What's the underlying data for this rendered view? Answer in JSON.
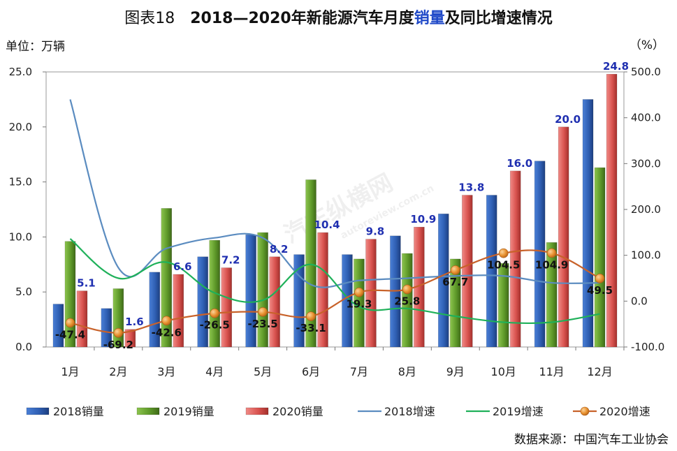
{
  "header": {
    "prefix": "图表18",
    "title_main": "2018—2020年新能源汽车月度",
    "title_accent": "销量",
    "title_suffix": "及同比增速情况"
  },
  "unit_left": "单位：万辆",
  "unit_right": "（%）",
  "source": "数据来源：中国汽车工业协会",
  "watermark": "汽车纵横网",
  "watermark_sub": "autoreview.com.cn",
  "colors": {
    "bar_2018": "#2f5fb3",
    "bar_2019": "#5f9a2a",
    "bar_2020": "#d9534f",
    "line_2018": "#5b8cc0",
    "line_2019": "#1fb15a",
    "line_2020": "#c8622a",
    "marker_2020": "#e8912f"
  },
  "chart_data": {
    "type": "bar",
    "categories": [
      "1月",
      "2月",
      "3月",
      "4月",
      "5月",
      "6月",
      "7月",
      "8月",
      "9月",
      "10月",
      "11月",
      "12月"
    ],
    "y_left": {
      "min": 0,
      "max": 25,
      "step": 5,
      "ticks": [
        "0.0",
        "5.0",
        "10.0",
        "15.0",
        "20.0",
        "25.0"
      ]
    },
    "y_right": {
      "min": -100,
      "max": 500,
      "step": 100,
      "ticks": [
        "-100.0",
        "0.0",
        "100.0",
        "200.0",
        "300.0",
        "400.0",
        "500.0"
      ]
    },
    "bar_series": [
      {
        "name": "2018销量",
        "values": [
          3.9,
          3.5,
          6.8,
          8.2,
          10.2,
          8.4,
          8.4,
          10.1,
          12.1,
          13.8,
          16.9,
          22.5
        ]
      },
      {
        "name": "2019销量",
        "values": [
          9.6,
          5.3,
          12.6,
          9.7,
          10.4,
          15.2,
          8.0,
          8.5,
          8.0,
          7.6,
          9.5,
          16.3
        ]
      },
      {
        "name": "2020销量",
        "values": [
          5.1,
          1.6,
          6.6,
          7.2,
          8.2,
          10.4,
          9.8,
          10.9,
          13.8,
          16.0,
          20.0,
          24.8
        ],
        "labels": [
          "5.1",
          "1.6",
          "6.6",
          "7.2",
          "8.2",
          "10.4",
          "9.8",
          "10.9",
          "13.8",
          "16.0",
          "20.0",
          "24.8"
        ]
      }
    ],
    "line_series": [
      {
        "name": "2018增速",
        "values": [
          440,
          73,
          115,
          138,
          138,
          36,
          45,
          50,
          55,
          55,
          40,
          40
        ]
      },
      {
        "name": "2019增速",
        "values": [
          136,
          50,
          85,
          18,
          2,
          80,
          -12,
          -16,
          -33,
          -46,
          -46,
          -28
        ]
      },
      {
        "name": "2020增速",
        "values": [
          -47.4,
          -69.2,
          -42.6,
          -26.5,
          -23.5,
          -33.1,
          19.3,
          25.8,
          67.7,
          104.5,
          104.9,
          49.5
        ],
        "labels": [
          "-47.4",
          "-69.2",
          "-42.6",
          "-26.5",
          "-23.5",
          "-33.1",
          "19.3",
          "25.8",
          "67.7",
          "104.5",
          "104.9",
          "49.5"
        ]
      }
    ],
    "legend": [
      "2018销量",
      "2019销量",
      "2020销量",
      "2018增速",
      "2019增速",
      "2020增速"
    ]
  }
}
